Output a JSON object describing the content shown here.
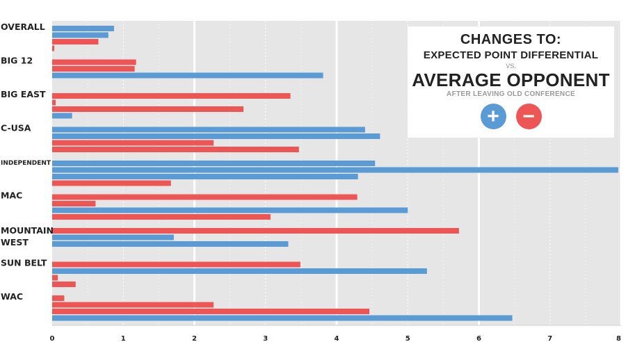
{
  "legend": {
    "line1": "CHANGES TO:",
    "line2": "EXPECTED POINT DIFFERENTIAL",
    "line3": "VS.",
    "line4": "AVERAGE OPPONENT",
    "line5": "AFTER LEAVING OLD CONFERENCE",
    "plus_symbol": "+",
    "minus_symbol": "−"
  },
  "colors": {
    "positive": "#5b9bd5",
    "negative": "#ee5656",
    "plot_background": "#e6e6e6",
    "major_grid": "#ffffff",
    "minor_grid": "#ffffff"
  },
  "chart_data": {
    "type": "bar",
    "orientation": "horizontal",
    "title": "",
    "xlabel": "",
    "ylabel": "",
    "xlim": [
      0,
      8
    ],
    "x_ticks": [
      "0",
      "1",
      "2",
      "3",
      "4",
      "5",
      "6",
      "7",
      "8"
    ],
    "grid": true,
    "legend_position": "top-right",
    "series_note_positive": "+",
    "series_note_negative": "−",
    "categories": [
      {
        "label": [
          "OVERALL"
        ],
        "bars": [
          {
            "value": 0.87,
            "sign": "+"
          },
          {
            "value": 0.79,
            "sign": "+"
          },
          {
            "value": 0.65,
            "sign": "-"
          },
          {
            "value": 0.03,
            "sign": "-"
          }
        ]
      },
      {
        "label": [
          "BIG 12"
        ],
        "bars": [
          {
            "value": 1.18,
            "sign": "-"
          },
          {
            "value": 1.16,
            "sign": "-"
          },
          {
            "value": 3.81,
            "sign": "+"
          }
        ]
      },
      {
        "label": [
          "BIG EAST"
        ],
        "bars": [
          {
            "value": 3.35,
            "sign": "-"
          },
          {
            "value": 0.05,
            "sign": "-"
          },
          {
            "value": 2.69,
            "sign": "-"
          },
          {
            "value": 0.28,
            "sign": "+"
          }
        ]
      },
      {
        "label": [
          "C-USA"
        ],
        "bars": [
          {
            "value": 4.4,
            "sign": "+"
          },
          {
            "value": 4.61,
            "sign": "+"
          },
          {
            "value": 2.27,
            "sign": "-"
          },
          {
            "value": 3.47,
            "sign": "-"
          }
        ]
      },
      {
        "label": [
          "INDEPENDENT"
        ],
        "bars": [
          {
            "value": 4.54,
            "sign": "+"
          },
          {
            "value": 7.96,
            "sign": "+"
          },
          {
            "value": 4.3,
            "sign": "+"
          },
          {
            "value": 1.67,
            "sign": "-"
          }
        ]
      },
      {
        "label": [
          "MAC"
        ],
        "bars": [
          {
            "value": 4.29,
            "sign": "-"
          },
          {
            "value": 0.61,
            "sign": "-"
          },
          {
            "value": 5.0,
            "sign": "+"
          },
          {
            "value": 3.07,
            "sign": "-"
          }
        ]
      },
      {
        "label": [
          "MOUNTAIN",
          "WEST"
        ],
        "bars": [
          {
            "value": 5.72,
            "sign": "-"
          },
          {
            "value": 1.71,
            "sign": "+"
          },
          {
            "value": 3.32,
            "sign": "+"
          }
        ]
      },
      {
        "label": [
          "SUN BELT"
        ],
        "bars": [
          {
            "value": 3.49,
            "sign": "-"
          },
          {
            "value": 5.27,
            "sign": "+"
          },
          {
            "value": 0.08,
            "sign": "-"
          },
          {
            "value": 0.33,
            "sign": "-"
          }
        ]
      },
      {
        "label": [
          "WAC"
        ],
        "bars": [
          {
            "value": 0.17,
            "sign": "-"
          },
          {
            "value": 2.27,
            "sign": "-"
          },
          {
            "value": 4.46,
            "sign": "-"
          },
          {
            "value": 6.47,
            "sign": "+"
          }
        ]
      }
    ]
  }
}
